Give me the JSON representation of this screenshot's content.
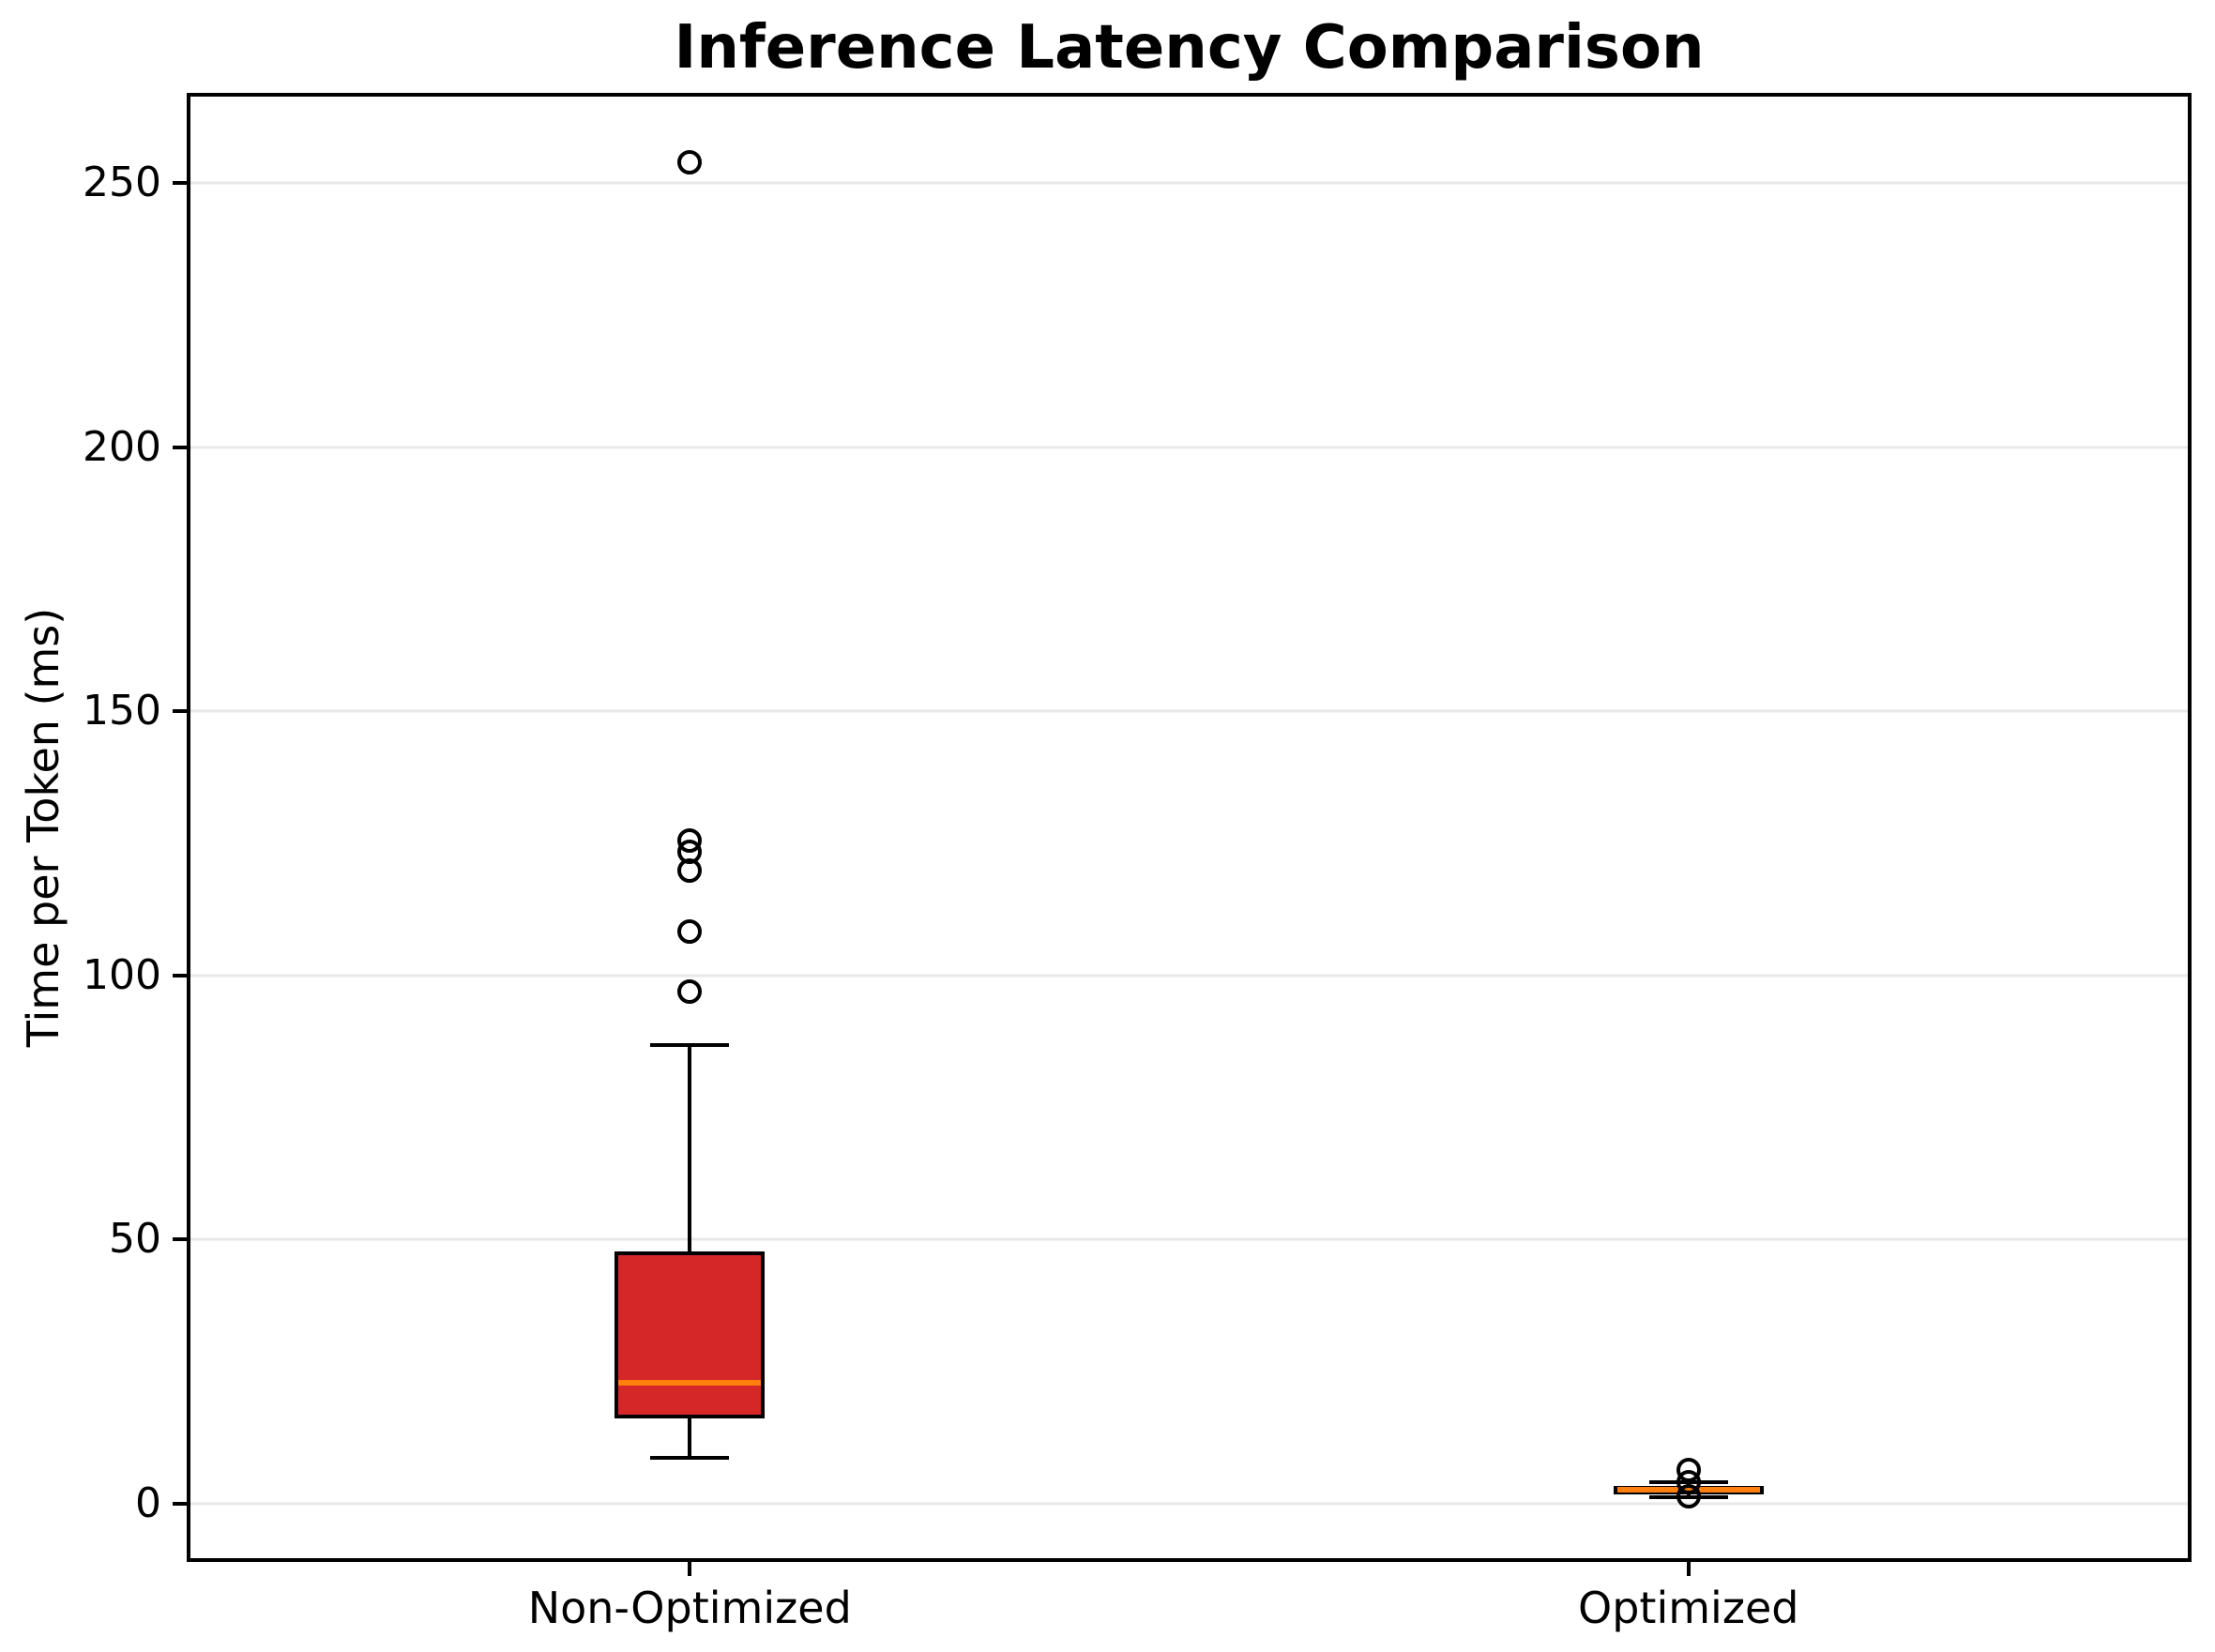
{
  "chart_data": {
    "type": "box",
    "title": "Inference Latency Comparison",
    "ylabel": "Time per Token (ms)",
    "xlabel": "",
    "categories": [
      "Non-Optimized",
      "Optimized"
    ],
    "yticks": [
      0,
      50,
      100,
      150,
      200,
      250
    ],
    "ylim": [
      -10.3,
      266.4
    ],
    "grid": "horizontal",
    "legend": "none",
    "series": [
      {
        "name": "Non-Optimized",
        "whisker_low": 8.7,
        "q1": 16.2,
        "median": 22.9,
        "q3": 47.8,
        "whisker_high": 86.9,
        "outliers": [
          97,
          108.3,
          119.8,
          123.5,
          125.5,
          254
        ],
        "box_color": "#d62728",
        "median_color": "#ff7f0e"
      },
      {
        "name": "Optimized",
        "whisker_low": 1.3,
        "q1": 1.8,
        "median": 2.6,
        "q3": 3.4,
        "whisker_high": 4.0,
        "outliers": [
          1.5,
          4.0,
          6.4
        ],
        "box_color": "#ff7f0e",
        "median_color": "#ff7f0e"
      }
    ],
    "colors": {
      "spine": "#000000",
      "grid": "#e8e8e8",
      "tick": "#000000",
      "background": "#ffffff"
    }
  }
}
